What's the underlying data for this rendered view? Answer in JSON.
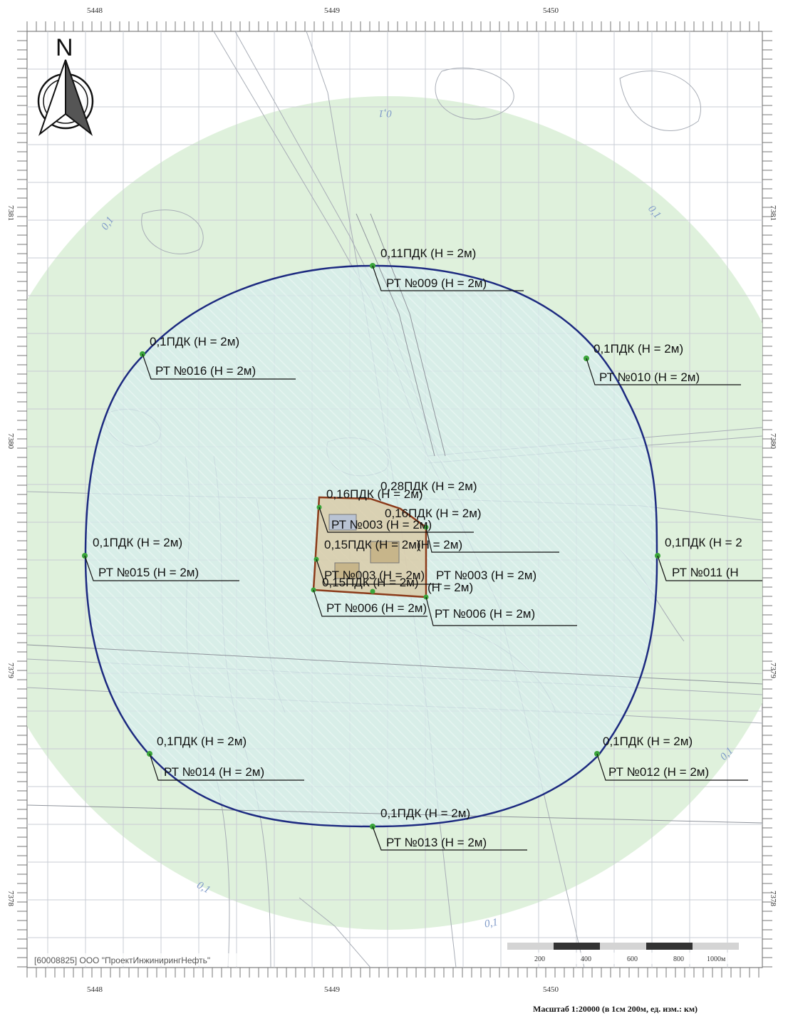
{
  "map": {
    "north_label": "N",
    "top_ticks": [
      "5448",
      "5449",
      "5450"
    ],
    "bottom_ticks": [
      "5448",
      "5449",
      "5450"
    ],
    "side_ticks": [
      "7381",
      "7380",
      "7379",
      "7378"
    ],
    "contour_labels": [
      "0,1"
    ],
    "receptors": [
      {
        "id": "rt009",
        "conc": "0,11ПДК (Н = 2м)",
        "name": "РТ №009 (Н = 2м)"
      },
      {
        "id": "rt016",
        "conc": "0,1ПДК (Н = 2м)",
        "name": "РТ №016 (Н = 2м)"
      },
      {
        "id": "rt010",
        "conc": "0,1ПДК (Н = 2м)",
        "name": "РТ №010 (Н = 2м)"
      },
      {
        "id": "rt015",
        "conc": "0,1ПДК (Н = 2м)",
        "name": "РТ №015 (Н = 2м)"
      },
      {
        "id": "rt011",
        "conc": "0,1ПДК (Н = 2",
        "name": "РТ №011 (Н"
      },
      {
        "id": "rt014",
        "conc": "0,1ПДК (Н = 2м)",
        "name": "РТ №014 (Н = 2м)"
      },
      {
        "id": "rt012",
        "conc": "0,1ПДК (Н = 2м)",
        "name": "РТ №012 (Н = 2м)"
      },
      {
        "id": "rt013",
        "conc": "0,1ПДК (Н = 2м)",
        "name": "РТ №013 (Н = 2м)"
      }
    ],
    "cluster_labels": [
      "0,28ПДК (Н = 2м)",
      "0,16ПДК (Н = 2м)",
      "0,15ПДК (Н = 2м)",
      "0,15ПДК (Н = 2м)",
      "РТ №003 (Н = 2м)",
      "РТ №006 (Н = 2м)",
      "(Н = 2м)"
    ],
    "organization": "[60008825] ООО \"ПроектИнжинирингНефть\"",
    "scale_ticks": [
      "200",
      "400",
      "600",
      "800",
      "1000м"
    ],
    "scale_caption": "Масштаб 1:20000 (в 1см 200м, ед. изм.: км)",
    "colors": {
      "outer_zone": "#d9efd6",
      "inner_zone": "#d6ecec",
      "boundary": "#1d2a80",
      "site": "#8b3a1a",
      "grid": "#c9ccd4",
      "receptor": "#3aa53a"
    }
  }
}
